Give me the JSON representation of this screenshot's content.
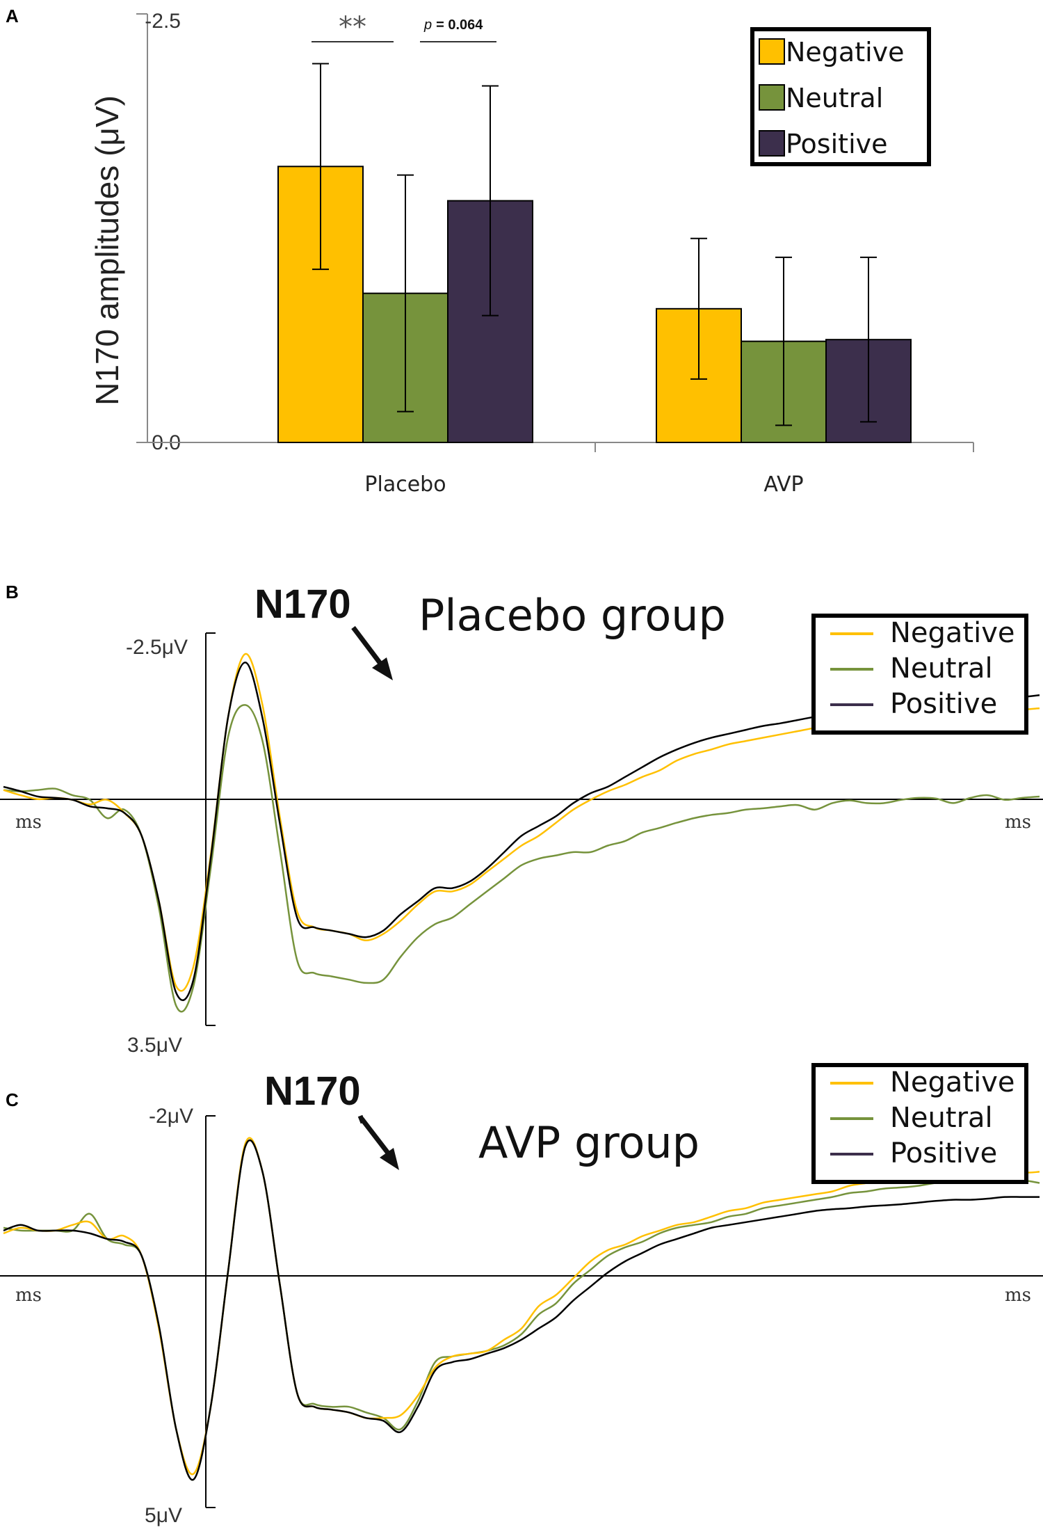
{
  "panels": {
    "a": "A",
    "b": "B",
    "c": "C"
  },
  "chart_data": [
    {
      "type": "bar",
      "panel": "A",
      "ylabel": "N170 amplitudes (μV)",
      "ytick_labels": [
        "-2.5",
        "0.0"
      ],
      "ylim": [
        0,
        -2.5
      ],
      "categories": [
        "Placebo",
        "AVP"
      ],
      "series": [
        {
          "name": "Negative",
          "color": "#FFC000",
          "values": [
            -1.61,
            -0.78
          ],
          "errors": [
            0.6,
            0.41
          ]
        },
        {
          "name": "Neutral",
          "color": "#76933C",
          "values": [
            -0.87,
            -0.59
          ],
          "errors": [
            0.69,
            0.49
          ]
        },
        {
          "name": "Positive",
          "color": "#3C2F4C",
          "values": [
            -1.41,
            -0.6
          ],
          "errors": [
            0.67,
            0.48
          ]
        }
      ],
      "annotations": [
        {
          "text": "**",
          "between": [
            "Negative",
            "Neutral"
          ],
          "category": "Placebo"
        },
        {
          "p_label": "p",
          "p_value": "= 0.064",
          "between": [
            "Neutral",
            "Positive"
          ],
          "category": "Placebo"
        }
      ],
      "legend": {
        "position": "top-right",
        "items": [
          "Negative",
          "Neutral",
          "Positive"
        ]
      }
    },
    {
      "type": "line",
      "panel": "B",
      "title": "Placebo group",
      "peak_label": "N170",
      "ytick_labels": [
        "-2.5μV",
        "3.5μV"
      ],
      "ylim": [
        3.5,
        -2.5
      ],
      "x_unit_left": "ms",
      "x_unit_right": "ms",
      "x": [
        0,
        1,
        2,
        3,
        4,
        5,
        6,
        7,
        8,
        9,
        10,
        11,
        12,
        13,
        14,
        15,
        16,
        17,
        18,
        19,
        20,
        21,
        22,
        23,
        24,
        25,
        26,
        27,
        28,
        29,
        30,
        31,
        32,
        33,
        34,
        35,
        36,
        37,
        38,
        39,
        40,
        41,
        42,
        43,
        44,
        45,
        46,
        47,
        48,
        49,
        50,
        51,
        52,
        53,
        54,
        55,
        56,
        57,
        58,
        59,
        60
      ],
      "series": [
        {
          "name": "Negative",
          "color": "#FFC000",
          "values": [
            -0.1,
            -0.02,
            0.04,
            0.02,
            0.05,
            0.12,
            0.05,
            0.25,
            0.6,
            1.6,
            2.9,
            2.6,
            0.9,
            -1.2,
            -2.18,
            -1.4,
            0.3,
            1.75,
            2.0,
            2.05,
            2.1,
            2.2,
            2.1,
            1.9,
            1.65,
            1.45,
            1.45,
            1.35,
            1.15,
            0.95,
            0.75,
            0.6,
            0.4,
            0.2,
            0.05,
            -0.08,
            -0.18,
            -0.3,
            -0.4,
            -0.55,
            -0.65,
            -0.72,
            -0.8,
            -0.85,
            -0.9,
            -0.95,
            -1.0,
            -1.05,
            -1.08,
            -1.1,
            -1.12,
            -1.15,
            -1.18,
            -1.2,
            -1.22,
            -1.25,
            -1.28,
            -1.3,
            -1.32,
            -1.33,
            -1.35
          ]
        },
        {
          "name": "Neutral",
          "color": "#76933C",
          "values": [
            -0.1,
            -0.08,
            -0.1,
            -0.12,
            -0.02,
            0.05,
            0.33,
            0.2,
            0.6,
            1.7,
            3.2,
            2.9,
            1.1,
            -0.9,
            -1.4,
            -0.85,
            0.8,
            2.5,
            2.7,
            2.75,
            2.8,
            2.85,
            2.8,
            2.45,
            2.15,
            1.95,
            1.85,
            1.65,
            1.45,
            1.25,
            1.05,
            0.95,
            0.9,
            0.85,
            0.85,
            0.75,
            0.68,
            0.55,
            0.48,
            0.4,
            0.33,
            0.28,
            0.25,
            0.2,
            0.18,
            0.15,
            0.13,
            0.2,
            0.1,
            0.06,
            0.1,
            0.1,
            0.05,
            0.02,
            0.03,
            0.1,
            0.02,
            -0.02,
            0.05,
            0.02,
            0.0
          ]
        },
        {
          "name": "Positive",
          "color": "#000000",
          "values": [
            -0.15,
            -0.08,
            0.0,
            0.02,
            0.05,
            0.15,
            0.18,
            0.25,
            0.6,
            1.6,
            3.0,
            2.8,
            0.95,
            -1.2,
            -2.05,
            -1.2,
            0.4,
            1.85,
            2.0,
            2.05,
            2.1,
            2.15,
            2.05,
            1.8,
            1.6,
            1.4,
            1.4,
            1.3,
            1.1,
            0.85,
            0.6,
            0.45,
            0.3,
            0.1,
            -0.05,
            -0.15,
            -0.3,
            -0.45,
            -0.6,
            -0.72,
            -0.82,
            -0.9,
            -0.96,
            -1.02,
            -1.08,
            -1.12,
            -1.17,
            -1.22,
            -1.25,
            -1.28,
            -1.3,
            -1.33,
            -1.35,
            -1.38,
            -1.4,
            -1.42,
            -1.45,
            -1.47,
            -1.5,
            -1.52,
            -1.55
          ]
        }
      ],
      "legend": {
        "position": "top-right",
        "items": [
          "Negative",
          "Neutral",
          "Positive"
        ]
      }
    },
    {
      "type": "line",
      "panel": "C",
      "title": "AVP group",
      "peak_label": "N170",
      "ytick_labels": [
        "-2μV",
        "5μV"
      ],
      "ylim": [
        5,
        -2
      ],
      "x_unit_left": "ms",
      "x_unit_right": "ms",
      "x": [
        0,
        1,
        2,
        3,
        4,
        5,
        6,
        7,
        8,
        9,
        10,
        11,
        12,
        13,
        14,
        15,
        16,
        17,
        18,
        19,
        20,
        21,
        22,
        23,
        24,
        25,
        26,
        27,
        28,
        29,
        30,
        31,
        32,
        33,
        34,
        35,
        36,
        37,
        38,
        39,
        40,
        41,
        42,
        43,
        44,
        45,
        46,
        47,
        48,
        49,
        50,
        51,
        52,
        53,
        54,
        55,
        56,
        57,
        58,
        59,
        60
      ],
      "series": [
        {
          "name": "Negative",
          "color": "#FFC000",
          "values": [
            0.1,
            0.0,
            0.05,
            0.05,
            -0.05,
            -0.1,
            0.2,
            0.15,
            0.5,
            1.8,
            3.6,
            4.4,
            3.2,
            0.8,
            -1.5,
            -1.0,
            1.0,
            2.95,
            3.2,
            3.25,
            3.3,
            3.4,
            3.4,
            3.35,
            3.0,
            2.5,
            2.3,
            2.25,
            2.2,
            2.0,
            1.8,
            1.4,
            1.2,
            0.9,
            0.6,
            0.4,
            0.3,
            0.15,
            0.05,
            -0.05,
            -0.1,
            -0.2,
            -0.3,
            -0.35,
            -0.45,
            -0.5,
            -0.55,
            -0.6,
            -0.65,
            -0.75,
            -0.8,
            -0.85,
            -0.9,
            -1.0,
            -1.05,
            -1.1,
            -1.1,
            -1.15,
            -1.2,
            -1.0,
            -1.0
          ]
        },
        {
          "name": "Neutral",
          "color": "#76933C",
          "values": [
            0.0,
            0.05,
            0.05,
            0.05,
            0.05,
            -0.25,
            0.2,
            0.3,
            0.5,
            1.75,
            3.6,
            4.5,
            3.2,
            0.8,
            -1.45,
            -1.0,
            1.0,
            2.95,
            3.15,
            3.2,
            3.2,
            3.3,
            3.4,
            3.6,
            3.1,
            2.4,
            2.3,
            2.25,
            2.2,
            2.1,
            1.9,
            1.55,
            1.35,
            1.0,
            0.75,
            0.5,
            0.35,
            0.25,
            0.1,
            0.0,
            -0.05,
            -0.1,
            -0.2,
            -0.25,
            -0.35,
            -0.4,
            -0.45,
            -0.5,
            -0.55,
            -0.62,
            -0.65,
            -0.7,
            -0.72,
            -0.75,
            -0.8,
            -0.8,
            -0.82,
            -0.85,
            -0.85,
            -0.85,
            -0.8
          ]
        },
        {
          "name": "Positive",
          "color": "#000000",
          "values": [
            0.05,
            -0.05,
            0.05,
            0.05,
            0.05,
            0.1,
            0.2,
            0.25,
            0.5,
            1.75,
            3.6,
            4.5,
            3.2,
            0.8,
            -1.45,
            -1.0,
            1.0,
            2.95,
            3.2,
            3.25,
            3.3,
            3.4,
            3.45,
            3.65,
            3.2,
            2.55,
            2.4,
            2.35,
            2.25,
            2.15,
            2.0,
            1.8,
            1.6,
            1.3,
            1.05,
            0.8,
            0.6,
            0.45,
            0.3,
            0.2,
            0.1,
            0.0,
            -0.05,
            -0.1,
            -0.15,
            -0.2,
            -0.25,
            -0.3,
            -0.33,
            -0.35,
            -0.38,
            -0.4,
            -0.42,
            -0.45,
            -0.48,
            -0.5,
            -0.5,
            -0.52,
            -0.55,
            -0.55,
            -0.55
          ]
        }
      ],
      "legend": {
        "position": "top-right",
        "items": [
          "Negative",
          "Neutral",
          "Positive"
        ]
      }
    }
  ]
}
